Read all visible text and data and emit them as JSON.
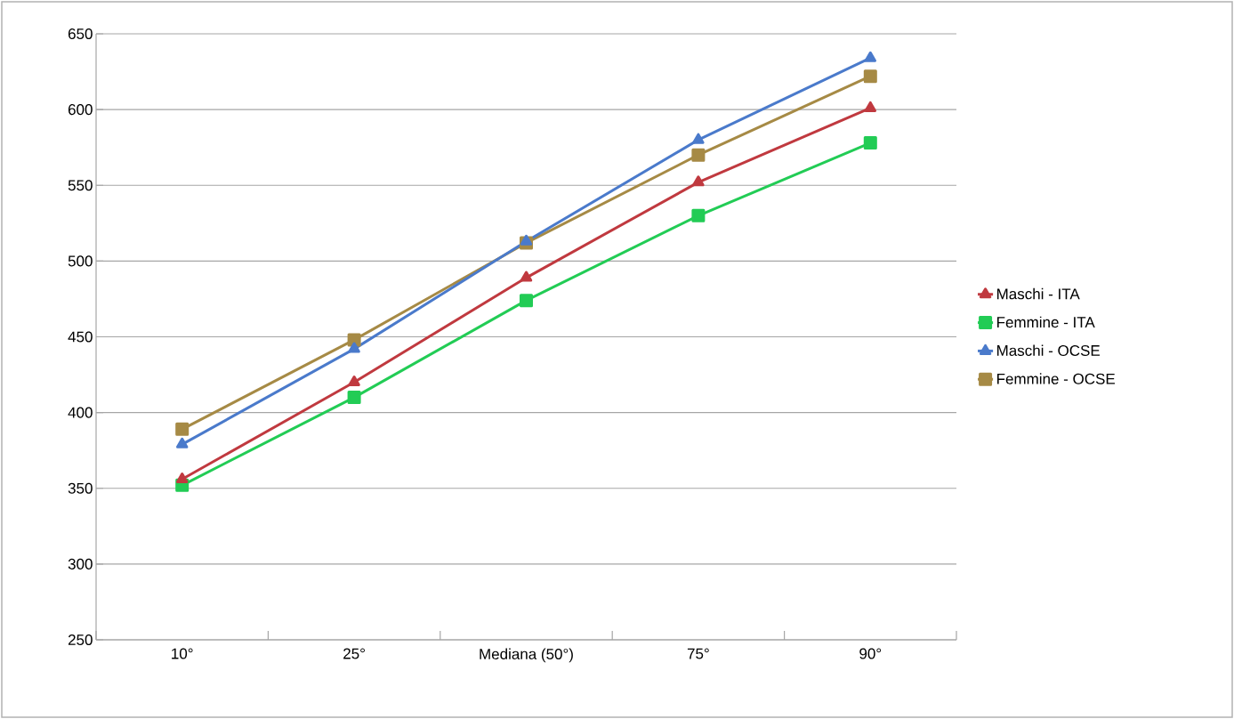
{
  "chart_data": {
    "type": "line",
    "categories": [
      "10°",
      "25°",
      "Mediana (50°)",
      "75°",
      "90°"
    ],
    "series": [
      {
        "name": "Maschi - ITA",
        "color": "#c0393f",
        "marker": "triangle",
        "values": [
          356,
          420,
          489,
          552,
          601
        ]
      },
      {
        "name": "Femmine - ITA",
        "color": "#22cc55",
        "marker": "square",
        "values": [
          352,
          410,
          474,
          530,
          578
        ]
      },
      {
        "name": "Maschi - OCSE",
        "color": "#4a7acb",
        "marker": "triangle",
        "values": [
          379,
          442,
          513,
          580,
          634
        ]
      },
      {
        "name": "Femmine - OCSE",
        "color": "#a68a45",
        "marker": "square",
        "values": [
          389,
          448,
          512,
          570,
          622
        ]
      }
    ],
    "ylim": [
      250,
      650
    ],
    "yticks": [
      250,
      300,
      350,
      400,
      450,
      500,
      550,
      600,
      650
    ],
    "grid": "y",
    "legend": "right",
    "line_style": "solid"
  }
}
